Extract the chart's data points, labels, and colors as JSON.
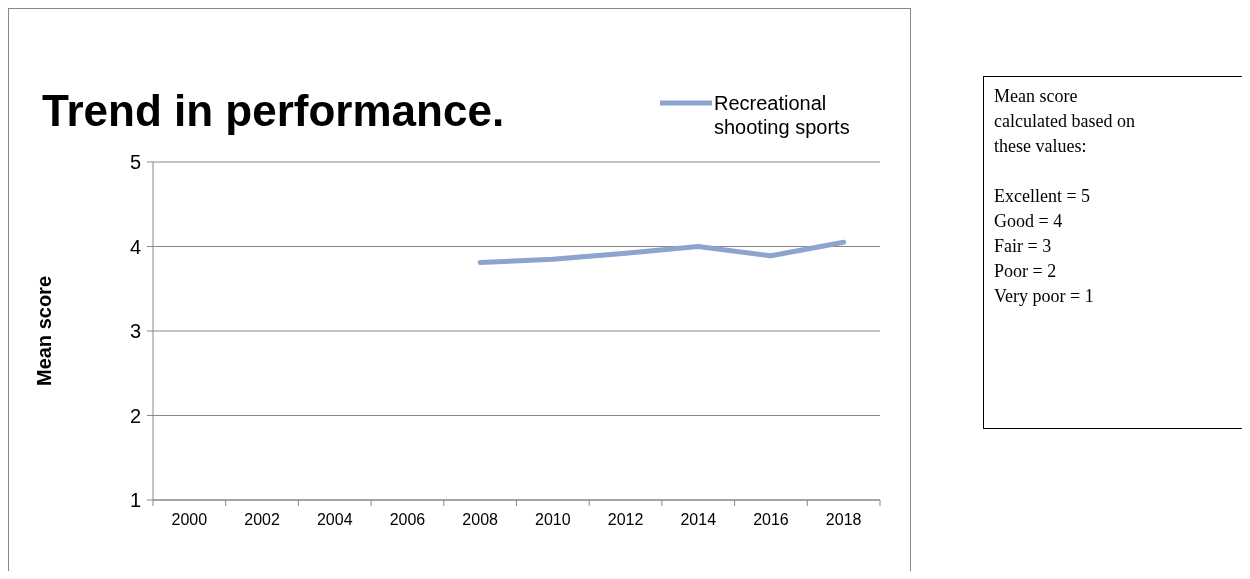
{
  "chart_data": {
    "type": "line",
    "title": "Trend in performance.",
    "ylabel": "Mean score",
    "categories": [
      "2000",
      "2002",
      "2004",
      "2006",
      "2008",
      "2010",
      "2012",
      "2014",
      "2016",
      "2018"
    ],
    "series": [
      {
        "name": "Recreational shooting sports",
        "color": "#8ba5cc",
        "values": [
          null,
          null,
          null,
          null,
          3.81,
          3.85,
          3.92,
          4.0,
          3.89,
          4.05
        ]
      }
    ],
    "ylim": [
      1,
      5
    ],
    "yticks": [
      1,
      2,
      3,
      4,
      5
    ],
    "grid": "y",
    "legend": "top right",
    "marker": "none",
    "line_style": "solid",
    "annotations": [
      "Mean score calculated based on these values:",
      "Excellent = 5",
      "Good = 4",
      "Fair = 3",
      "Poor = 2",
      "Very poor = 1"
    ]
  }
}
